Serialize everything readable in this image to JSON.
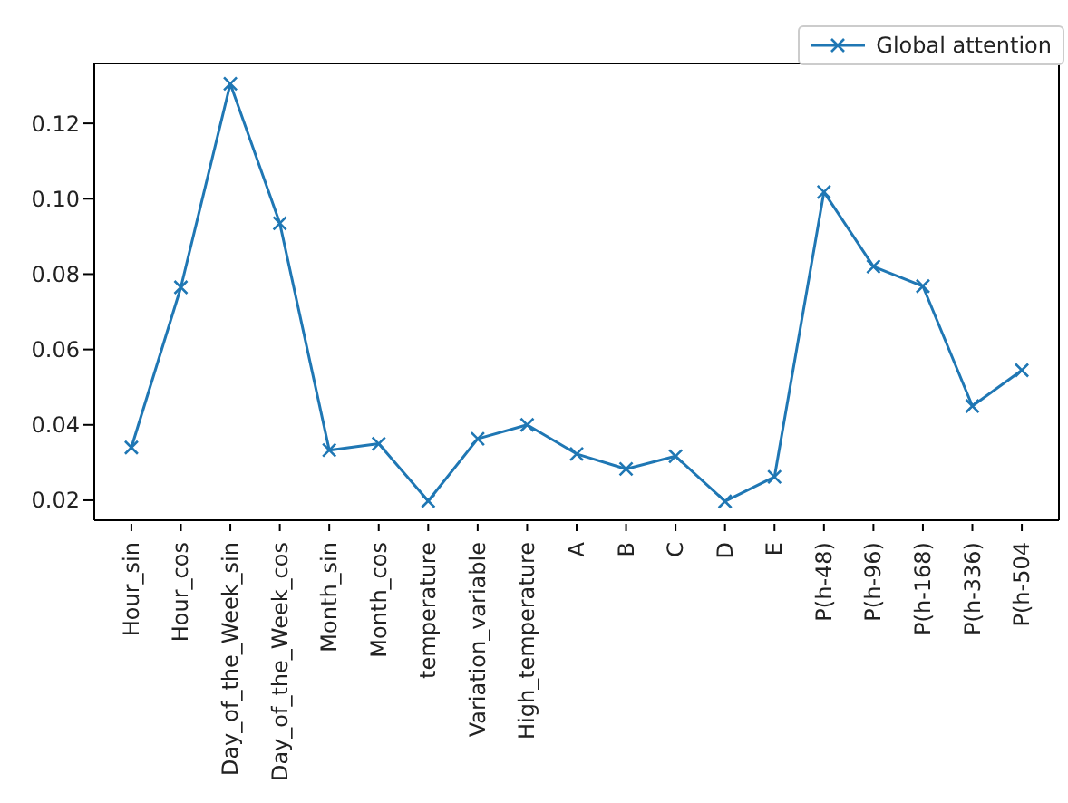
{
  "chart_data": {
    "type": "line",
    "categories": [
      "Hour_sin",
      "Hour_cos",
      "Day_of_the_Week_sin",
      "Day_of_the_Week_cos",
      "Month_sin",
      "Month_cos",
      "temperature",
      "Variation_variable",
      "High_temperature",
      "A",
      "B",
      "C",
      "D",
      "E",
      "P(h-48)",
      "P(h-96)",
      "P(h-168)",
      "P(h-336)",
      "P(h-504"
    ],
    "series": [
      {
        "name": "Global attention",
        "color": "#1f77b4",
        "values": [
          0.034,
          0.0765,
          0.1305,
          0.0935,
          0.0333,
          0.035,
          0.0198,
          0.0363,
          0.04,
          0.0323,
          0.0283,
          0.0317,
          0.0197,
          0.0262,
          0.1018,
          0.082,
          0.0768,
          0.045,
          0.0545
        ]
      }
    ],
    "ylim": [
      0.0147,
      0.1359
    ],
    "yticks": [
      {
        "value": 0.02,
        "label": "0.02"
      },
      {
        "value": 0.04,
        "label": "0.04"
      },
      {
        "value": 0.06,
        "label": "0.06"
      },
      {
        "value": 0.08,
        "label": "0.08"
      },
      {
        "value": 0.1,
        "label": "0.10"
      },
      {
        "value": 0.12,
        "label": "0.12"
      }
    ],
    "marker": "cross",
    "legend": "top right",
    "grid": false
  }
}
